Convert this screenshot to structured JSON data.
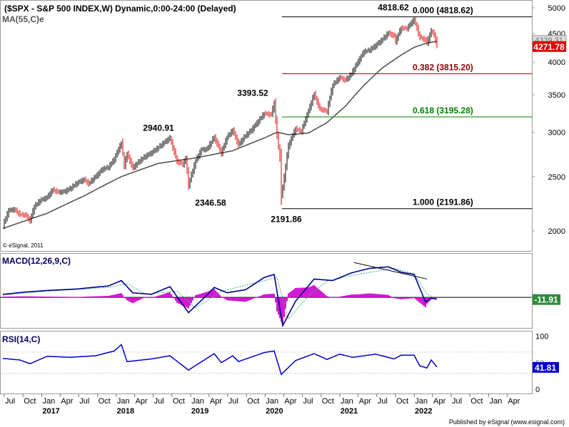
{
  "chart_data": {
    "type": "bar",
    "title": "($SPX - S&P 500 INDEX,W) Dynamic,0:00-24:00 (Delayed)",
    "ma_label": "MA(55,C)e",
    "watermark": "© eSignal, 2011",
    "publisher": "Published by eSignal (www.esignal.com)",
    "x_ticks": [
      "Jul",
      "Oct",
      "Jan",
      "Apr",
      "Jul",
      "Oct",
      "Jan",
      "Apr",
      "Jul",
      "Oct",
      "Jan",
      "Apr",
      "Jul",
      "Oct",
      "Jan",
      "Apr",
      "Jul",
      "Oct",
      "Jan",
      "Apr",
      "Jul",
      "Oct",
      "Jan",
      "Apr",
      "Jul",
      "Oct",
      "Jan",
      "Apr"
    ],
    "x_years": [
      "2017",
      "2018",
      "2019",
      "2020",
      "2021",
      "2022"
    ],
    "price": {
      "y_ticks": [
        2000,
        2500,
        3000,
        3500,
        4000,
        4500,
        5000
      ],
      "ylim": [
        1980,
        5080
      ],
      "last_value": "4271.78",
      "hidden_value": "4339.31",
      "swing_labels": [
        {
          "text": "2940.91",
          "date": "2018-01-26",
          "value": 2940.91,
          "side": "above"
        },
        {
          "text": "2346.58",
          "date": "2018-12-26",
          "value": 2346.58,
          "side": "below"
        },
        {
          "text": "3393.52",
          "date": "2020-02-19",
          "value": 3393.52,
          "side": "above"
        },
        {
          "text": "2191.86",
          "date": "2020-03-23",
          "value": 2191.86,
          "side": "below"
        },
        {
          "text": "4818.62",
          "date": "2022-01-04",
          "value": 4818.62,
          "side": "above"
        }
      ],
      "fib_levels": [
        {
          "ratio": "0.000",
          "value": 4818.62,
          "text": "0.000 (4818.62)",
          "color": "#000000"
        },
        {
          "ratio": "0.382",
          "value": 3815.2,
          "text": "0.382 (3815.20)",
          "color": "#8b0000"
        },
        {
          "ratio": "0.618",
          "value": 3195.28,
          "text": "0.618 (3195.28)",
          "color": "#008000"
        },
        {
          "ratio": "1.000",
          "value": 2191.86,
          "text": "1.000 (2191.86)",
          "color": "#000000"
        }
      ],
      "path": [
        [
          "2016-06-24",
          2040
        ],
        [
          "2016-07-22",
          2175
        ],
        [
          "2016-08-19",
          2185
        ],
        [
          "2016-09-16",
          2140
        ],
        [
          "2016-10-14",
          2135
        ],
        [
          "2016-11-04",
          2085
        ],
        [
          "2016-11-25",
          2210
        ],
        [
          "2016-12-23",
          2265
        ],
        [
          "2017-01-27",
          2295
        ],
        [
          "2017-02-24",
          2370
        ],
        [
          "2017-03-24",
          2345
        ],
        [
          "2017-04-21",
          2350
        ],
        [
          "2017-05-19",
          2380
        ],
        [
          "2017-06-23",
          2435
        ],
        [
          "2017-07-28",
          2470
        ],
        [
          "2017-08-18",
          2430
        ],
        [
          "2017-09-22",
          2500
        ],
        [
          "2017-10-27",
          2580
        ],
        [
          "2017-11-24",
          2600
        ],
        [
          "2017-12-22",
          2685
        ],
        [
          "2018-01-26",
          2872
        ],
        [
          "2018-02-09",
          2620
        ],
        [
          "2018-02-23",
          2745
        ],
        [
          "2018-03-23",
          2590
        ],
        [
          "2018-04-27",
          2670
        ],
        [
          "2018-05-25",
          2720
        ],
        [
          "2018-06-22",
          2755
        ],
        [
          "2018-07-27",
          2820
        ],
        [
          "2018-08-24",
          2875
        ],
        [
          "2018-09-21",
          2930
        ],
        [
          "2018-10-26",
          2660
        ],
        [
          "2018-11-23",
          2630
        ],
        [
          "2018-12-07",
          2690
        ],
        [
          "2018-12-21",
          2416
        ],
        [
          "2019-01-25",
          2665
        ],
        [
          "2019-02-22",
          2790
        ],
        [
          "2019-03-22",
          2800
        ],
        [
          "2019-04-26",
          2940
        ],
        [
          "2019-05-31",
          2752
        ],
        [
          "2019-06-28",
          2940
        ],
        [
          "2019-07-26",
          3025
        ],
        [
          "2019-08-23",
          2848
        ],
        [
          "2019-09-27",
          2960
        ],
        [
          "2019-10-25",
          3025
        ],
        [
          "2019-11-29",
          3140
        ],
        [
          "2019-12-27",
          3240
        ],
        [
          "2020-01-31",
          3225
        ],
        [
          "2020-02-14",
          3380
        ],
        [
          "2020-02-28",
          2954
        ],
        [
          "2020-03-13",
          2710
        ],
        [
          "2020-03-20",
          2305
        ],
        [
          "2020-04-03",
          2490
        ],
        [
          "2020-04-24",
          2835
        ],
        [
          "2020-05-29",
          3045
        ],
        [
          "2020-06-26",
          3010
        ],
        [
          "2020-07-31",
          3270
        ],
        [
          "2020-08-28",
          3510
        ],
        [
          "2020-09-25",
          3300
        ],
        [
          "2020-10-30",
          3270
        ],
        [
          "2020-11-27",
          3640
        ],
        [
          "2020-12-31",
          3755
        ],
        [
          "2021-01-29",
          3715
        ],
        [
          "2021-02-26",
          3810
        ],
        [
          "2021-03-26",
          3975
        ],
        [
          "2021-04-30",
          4180
        ],
        [
          "2021-05-28",
          4205
        ],
        [
          "2021-06-25",
          4280
        ],
        [
          "2021-07-30",
          4395
        ],
        [
          "2021-08-27",
          4510
        ],
        [
          "2021-09-24",
          4455
        ],
        [
          "2021-10-01",
          4357
        ],
        [
          "2021-10-29",
          4605
        ],
        [
          "2021-11-26",
          4595
        ],
        [
          "2021-12-31",
          4766
        ],
        [
          "2022-01-28",
          4432
        ],
        [
          "2022-02-25",
          4385
        ],
        [
          "2022-03-04",
          4329
        ],
        [
          "2022-03-25",
          4545
        ],
        [
          "2022-04-08",
          4488
        ],
        [
          "2022-04-22",
          4271.78
        ]
      ],
      "ma_path": [
        [
          "2016-06-24",
          2020
        ],
        [
          "2017-01-27",
          2150
        ],
        [
          "2017-07-28",
          2310
        ],
        [
          "2018-01-26",
          2500
        ],
        [
          "2018-07-27",
          2640
        ],
        [
          "2019-01-25",
          2700
        ],
        [
          "2019-07-26",
          2780
        ],
        [
          "2019-12-27",
          2930
        ],
        [
          "2020-02-28",
          3000
        ],
        [
          "2020-04-24",
          2970
        ],
        [
          "2020-07-31",
          2990
        ],
        [
          "2020-10-30",
          3120
        ],
        [
          "2021-01-29",
          3340
        ],
        [
          "2021-04-30",
          3640
        ],
        [
          "2021-07-30",
          3910
        ],
        [
          "2021-10-29",
          4120
        ],
        [
          "2021-12-31",
          4250
        ],
        [
          "2022-02-25",
          4320
        ],
        [
          "2022-04-22",
          4360
        ]
      ]
    },
    "macd": {
      "label": "MACD(12,26,9,C)",
      "last_value": "-11.91",
      "ylim": [
        -200,
        290
      ],
      "macd_path": [
        [
          "2016-06-24",
          20
        ],
        [
          "2016-10-14",
          35
        ],
        [
          "2017-01-27",
          45
        ],
        [
          "2017-06-23",
          55
        ],
        [
          "2017-11-24",
          75
        ],
        [
          "2018-01-26",
          110
        ],
        [
          "2018-03-23",
          30
        ],
        [
          "2018-06-22",
          20
        ],
        [
          "2018-09-21",
          70
        ],
        [
          "2018-12-21",
          -100
        ],
        [
          "2019-03-22",
          15
        ],
        [
          "2019-04-26",
          65
        ],
        [
          "2019-06-28",
          30
        ],
        [
          "2019-09-27",
          50
        ],
        [
          "2019-12-27",
          130
        ],
        [
          "2020-02-14",
          150
        ],
        [
          "2020-03-27",
          -185
        ],
        [
          "2020-05-29",
          -25
        ],
        [
          "2020-08-28",
          120
        ],
        [
          "2020-11-27",
          110
        ],
        [
          "2021-02-26",
          160
        ],
        [
          "2021-05-28",
          190
        ],
        [
          "2021-08-27",
          200
        ],
        [
          "2021-10-29",
          165
        ],
        [
          "2021-12-31",
          150
        ],
        [
          "2022-02-25",
          -30
        ],
        [
          "2022-03-25",
          -5
        ],
        [
          "2022-04-22",
          -11.91
        ]
      ],
      "signal_path": [
        [
          "2016-06-24",
          15
        ],
        [
          "2017-01-27",
          40
        ],
        [
          "2017-11-24",
          65
        ],
        [
          "2018-02-23",
          90
        ],
        [
          "2018-05-25",
          20
        ],
        [
          "2018-10-26",
          40
        ],
        [
          "2019-01-25",
          -70
        ],
        [
          "2019-05-31",
          40
        ],
        [
          "2019-12-27",
          110
        ],
        [
          "2020-02-28",
          130
        ],
        [
          "2020-04-24",
          -140
        ],
        [
          "2020-07-31",
          10
        ],
        [
          "2020-10-30",
          105
        ],
        [
          "2021-03-26",
          150
        ],
        [
          "2021-09-24",
          190
        ],
        [
          "2021-12-31",
          155
        ],
        [
          "2022-03-04",
          20
        ],
        [
          "2022-04-22",
          -8
        ]
      ],
      "trendline": [
        [
          "2021-06-25",
          200
        ],
        [
          "2022-04-08",
          120
        ]
      ]
    },
    "rsi": {
      "label": "RSI(14,C)",
      "last_value": "41.81",
      "hidden_value": "50",
      "y_ticks": [
        0,
        100
      ],
      "ylim": [
        -8,
        110
      ],
      "levels": [
        30,
        70
      ],
      "path": [
        [
          "2016-06-24",
          58
        ],
        [
          "2016-09-16",
          55
        ],
        [
          "2016-11-04",
          48
        ],
        [
          "2017-01-27",
          62
        ],
        [
          "2017-05-19",
          60
        ],
        [
          "2017-09-22",
          63
        ],
        [
          "2017-12-22",
          72
        ],
        [
          "2018-01-26",
          84
        ],
        [
          "2018-02-23",
          52
        ],
        [
          "2018-06-22",
          57
        ],
        [
          "2018-09-21",
          63
        ],
        [
          "2018-12-21",
          36
        ],
        [
          "2019-04-26",
          67
        ],
        [
          "2019-05-31",
          50
        ],
        [
          "2019-07-26",
          63
        ],
        [
          "2019-08-23",
          52
        ],
        [
          "2019-12-27",
          69
        ],
        [
          "2020-02-14",
          72
        ],
        [
          "2020-03-20",
          28
        ],
        [
          "2020-05-29",
          54
        ],
        [
          "2020-08-28",
          67
        ],
        [
          "2020-10-30",
          56
        ],
        [
          "2020-12-31",
          66
        ],
        [
          "2021-03-05",
          60
        ],
        [
          "2021-06-25",
          66
        ],
        [
          "2021-09-24",
          57
        ],
        [
          "2021-10-29",
          64
        ],
        [
          "2021-12-31",
          64
        ],
        [
          "2022-01-28",
          44
        ],
        [
          "2022-03-04",
          40
        ],
        [
          "2022-03-25",
          55
        ],
        [
          "2022-04-22",
          41.81
        ]
      ]
    }
  }
}
